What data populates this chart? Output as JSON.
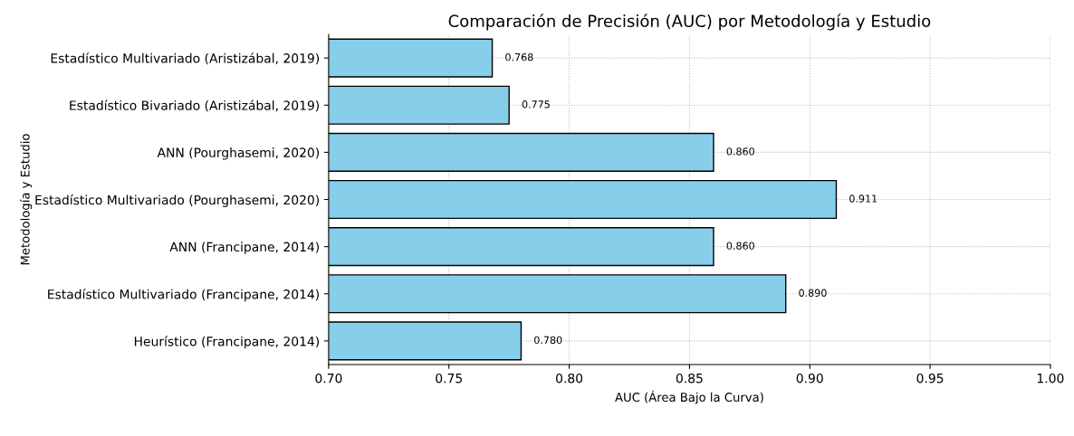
{
  "chart_data": {
    "type": "bar",
    "orientation": "horizontal",
    "title": "Comparación de Precisión (AUC) por Metodología y Estudio",
    "xlabel": "AUC (Área Bajo la Curva)",
    "ylabel": "Metodología y Estudio",
    "categories": [
      "Estadístico Multivariado (Aristizábal, 2019)",
      "Estadístico Bivariado (Aristizábal, 2019)",
      "ANN (Pourghasemi, 2020)",
      "Estadístico Multivariado (Pourghasemi, 2020)",
      "ANN (Francipane, 2014)",
      "Estadístico Multivariado (Francipane, 2014)",
      "Heurístico (Francipane, 2014)"
    ],
    "values": [
      0.768,
      0.775,
      0.86,
      0.911,
      0.86,
      0.89,
      0.78
    ],
    "value_labels": [
      "0.768",
      "0.775",
      "0.860",
      "0.911",
      "0.860",
      "0.890",
      "0.780"
    ],
    "color": "#87ceeb",
    "xlim": [
      0.7,
      1.0
    ],
    "xticks": [
      {
        "value": 0.7,
        "label": "0.70"
      },
      {
        "value": 0.75,
        "label": "0.75"
      },
      {
        "value": 0.8,
        "label": "0.80"
      },
      {
        "value": 0.85,
        "label": "0.85"
      },
      {
        "value": 0.9,
        "label": "0.90"
      },
      {
        "value": 0.95,
        "label": "0.95"
      },
      {
        "value": 1.0,
        "label": "1.00"
      }
    ],
    "grid": true
  }
}
